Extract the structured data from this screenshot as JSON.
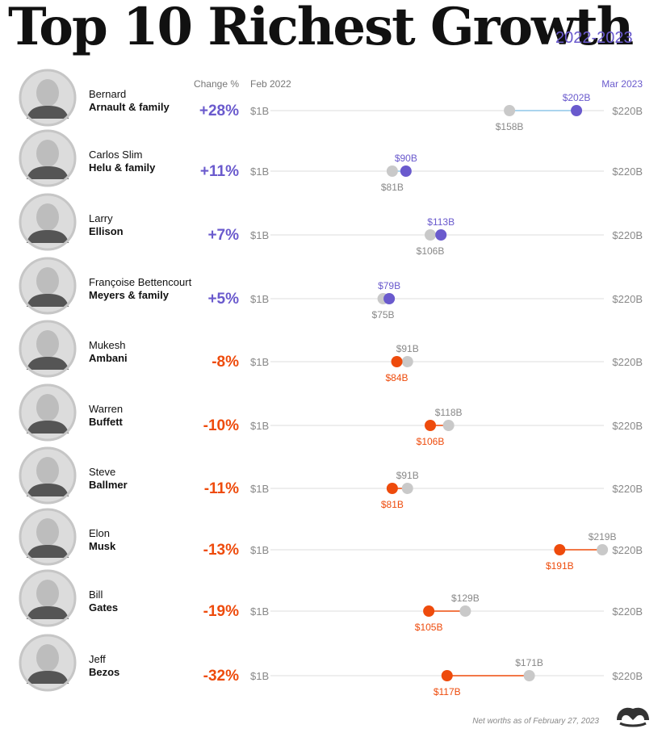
{
  "title": "Top 10 Richest Growth",
  "years": "2022-2023",
  "headers": {
    "change": "Change %",
    "start": "Feb 2022",
    "end": "Mar 2023"
  },
  "axis": {
    "min_label": "$1B",
    "max_label": "$220B"
  },
  "footnote": "Net worths as of February 27, 2023",
  "colors": {
    "gain": "#6a5acd",
    "loss": "#ee4b0c",
    "feb": "#c9c9c9",
    "line": "#dddddd",
    "gain_line": "#8ec5e8"
  },
  "chart_data": {
    "type": "dot-plot",
    "title": "Top 10 Richest Growth",
    "subtitle": "2022-2023",
    "x_range": [
      1,
      220
    ],
    "unit": "$B",
    "series": [
      {
        "name": "Feb 2022"
      },
      {
        "name": "Mar 2023"
      }
    ],
    "rows": [
      {
        "first": "Bernard",
        "last": "Arnault & family",
        "change": "+28%",
        "feb": 158,
        "mar": 202,
        "feb_label": "$158B",
        "mar_label": "$202B"
      },
      {
        "first": "Carlos Slim",
        "last": "Helu & family",
        "change": "+11%",
        "feb": 81,
        "mar": 90,
        "feb_label": "$81B",
        "mar_label": "$90B"
      },
      {
        "first": "Larry",
        "last": "Ellison",
        "change": "+7%",
        "feb": 106,
        "mar": 113,
        "feb_label": "$106B",
        "mar_label": "$113B"
      },
      {
        "first": "Françoise Bettencourt",
        "last": "Meyers & family",
        "change": "+5%",
        "feb": 75,
        "mar": 79,
        "feb_label": "$75B",
        "mar_label": "$79B"
      },
      {
        "first": "Mukesh",
        "last": "Ambani",
        "change": "-8%",
        "feb": 91,
        "mar": 84,
        "feb_label": "$91B",
        "mar_label": "$84B"
      },
      {
        "first": "Warren",
        "last": "Buffett",
        "change": "-10%",
        "feb": 118,
        "mar": 106,
        "feb_label": "$118B",
        "mar_label": "$106B"
      },
      {
        "first": "Steve",
        "last": "Ballmer",
        "change": "-11%",
        "feb": 91,
        "mar": 81,
        "feb_label": "$91B",
        "mar_label": "$81B"
      },
      {
        "first": "Elon",
        "last": "Musk",
        "change": "-13%",
        "feb": 219,
        "mar": 191,
        "feb_label": "$219B",
        "mar_label": "$191B"
      },
      {
        "first": "Bill",
        "last": "Gates",
        "change": "-19%",
        "feb": 129,
        "mar": 105,
        "feb_label": "$129B",
        "mar_label": "$105B"
      },
      {
        "first": "Jeff",
        "last": "Bezos",
        "change": "-32%",
        "feb": 171,
        "mar": 117,
        "feb_label": "$171B",
        "mar_label": "$117B"
      }
    ]
  }
}
